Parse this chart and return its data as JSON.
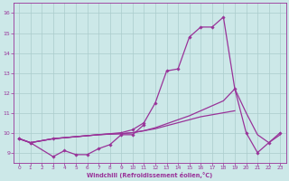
{
  "bg_color": "#cce8e8",
  "grid_color": "#aacccc",
  "line_color": "#993399",
  "xlim": [
    -0.5,
    23.5
  ],
  "ylim": [
    8.5,
    16.5
  ],
  "yticks": [
    9,
    10,
    11,
    12,
    13,
    14,
    15,
    16
  ],
  "xticks": [
    0,
    1,
    2,
    3,
    4,
    5,
    6,
    7,
    8,
    9,
    10,
    11,
    12,
    13,
    14,
    15,
    16,
    17,
    18,
    19,
    20,
    21,
    22,
    23
  ],
  "xlabel": "Windchill (Refroidissement éolien,°C)",
  "line1": {
    "x": [
      0,
      1,
      3,
      4,
      5,
      6,
      7,
      8,
      9,
      10,
      11
    ],
    "y": [
      9.7,
      9.5,
      8.8,
      9.1,
      8.9,
      8.9,
      9.2,
      9.4,
      9.9,
      9.9,
      10.4
    ],
    "marker": true
  },
  "line2": {
    "x": [
      0,
      1,
      3,
      4,
      5,
      6,
      7,
      8,
      9,
      10,
      11,
      12,
      13,
      14,
      15,
      16,
      17,
      18,
      19
    ],
    "y": [
      9.7,
      9.5,
      9.7,
      9.75,
      9.8,
      9.85,
      9.9,
      9.93,
      9.95,
      10.0,
      10.1,
      10.2,
      10.35,
      10.5,
      10.65,
      10.8,
      10.9,
      11.0,
      11.1
    ],
    "marker": false
  },
  "line3": {
    "x": [
      0,
      1,
      3,
      4,
      5,
      6,
      7,
      8,
      9,
      10,
      11,
      12,
      13,
      14,
      15,
      16,
      17,
      18,
      19,
      20,
      21,
      22,
      23
    ],
    "y": [
      9.7,
      9.5,
      9.7,
      9.75,
      9.8,
      9.85,
      9.9,
      9.93,
      9.95,
      10.0,
      10.1,
      10.25,
      10.45,
      10.65,
      10.85,
      11.1,
      11.35,
      11.6,
      12.2,
      11.0,
      9.9,
      9.5,
      9.9
    ],
    "marker": false
  },
  "line4": {
    "x": [
      0,
      1,
      3,
      9,
      10,
      11,
      12,
      13,
      14,
      15,
      16,
      17,
      18,
      19,
      20,
      21,
      22,
      23
    ],
    "y": [
      9.7,
      9.5,
      9.7,
      10.0,
      10.15,
      10.5,
      11.5,
      13.1,
      13.2,
      14.8,
      15.3,
      15.3,
      15.8,
      12.2,
      10.0,
      9.0,
      9.5,
      10.0
    ],
    "marker": true
  }
}
